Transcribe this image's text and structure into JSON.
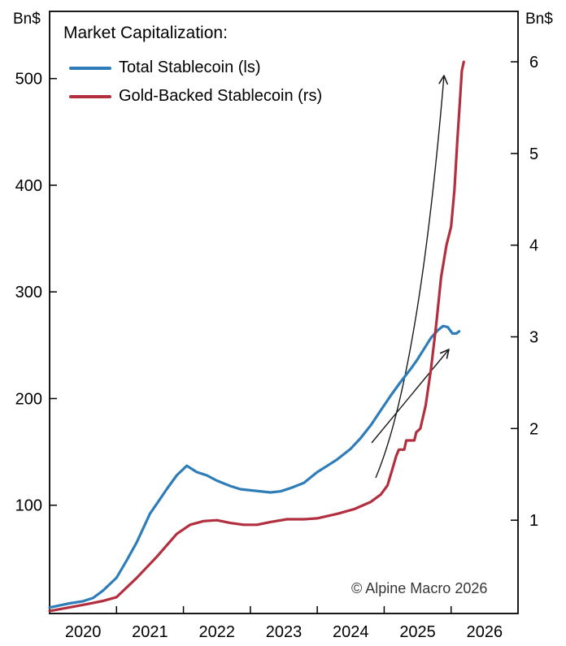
{
  "chart_data": {
    "type": "line",
    "title": "Market Capitalization:",
    "copyright": "© Alpine Macro 2026",
    "grid": false,
    "legend_position": "top-left",
    "legend": [
      {
        "label": "Total Stablecoin (ls)",
        "color": "#2e7db8",
        "axis": "left"
      },
      {
        "label": "Gold-Backed Stablecoin (rs)",
        "color": "#b22f3f",
        "axis": "right"
      }
    ],
    "x_axis": {
      "range": [
        2020,
        2027
      ],
      "tick_years": [
        2021,
        2022,
        2023,
        2024,
        2025,
        2026
      ],
      "year_labels": [
        2020,
        2021,
        2022,
        2023,
        2024,
        2025,
        2026
      ]
    },
    "left_axis": {
      "unit": "Bn$",
      "ticks": [
        100,
        200,
        300,
        400,
        500
      ],
      "ylim": [
        0,
        563
      ]
    },
    "right_axis": {
      "unit": "Bn$",
      "ticks": [
        1,
        2,
        3,
        4,
        5,
        6
      ],
      "ylim": [
        0,
        6.55
      ]
    },
    "series": [
      {
        "name": "Total Stablecoin (ls)",
        "axis": "left",
        "color": "#2e7db8",
        "points": [
          [
            2020.0,
            4
          ],
          [
            2020.15,
            6
          ],
          [
            2020.3,
            8
          ],
          [
            2020.5,
            10
          ],
          [
            2020.65,
            13
          ],
          [
            2020.8,
            20
          ],
          [
            2021.0,
            32
          ],
          [
            2021.15,
            48
          ],
          [
            2021.3,
            65
          ],
          [
            2021.5,
            92
          ],
          [
            2021.62,
            103
          ],
          [
            2021.75,
            115
          ],
          [
            2021.9,
            128
          ],
          [
            2022.05,
            137
          ],
          [
            2022.2,
            131
          ],
          [
            2022.35,
            128
          ],
          [
            2022.5,
            123
          ],
          [
            2022.7,
            118
          ],
          [
            2022.85,
            115
          ],
          [
            2023.0,
            114
          ],
          [
            2023.3,
            112
          ],
          [
            2023.45,
            113
          ],
          [
            2023.6,
            116
          ],
          [
            2023.8,
            121
          ],
          [
            2024.0,
            131
          ],
          [
            2024.15,
            137
          ],
          [
            2024.3,
            143
          ],
          [
            2024.5,
            153
          ],
          [
            2024.65,
            163
          ],
          [
            2024.8,
            175
          ],
          [
            2024.95,
            189
          ],
          [
            2025.1,
            203
          ],
          [
            2025.25,
            216
          ],
          [
            2025.4,
            228
          ],
          [
            2025.5,
            237
          ],
          [
            2025.6,
            247
          ],
          [
            2025.7,
            257
          ],
          [
            2025.8,
            264
          ],
          [
            2025.88,
            268
          ],
          [
            2025.95,
            267
          ],
          [
            2026.02,
            261
          ],
          [
            2026.08,
            261
          ],
          [
            2026.12,
            263
          ]
        ]
      },
      {
        "name": "Gold-Backed Stablecoin (rs)",
        "axis": "right",
        "color": "#b22f3f",
        "points": [
          [
            2020.0,
            0.01
          ],
          [
            2020.3,
            0.05
          ],
          [
            2020.6,
            0.09
          ],
          [
            2020.8,
            0.12
          ],
          [
            2021.0,
            0.16
          ],
          [
            2021.3,
            0.37
          ],
          [
            2021.6,
            0.6
          ],
          [
            2021.9,
            0.85
          ],
          [
            2022.1,
            0.95
          ],
          [
            2022.3,
            0.99
          ],
          [
            2022.5,
            1.0
          ],
          [
            2022.7,
            0.97
          ],
          [
            2022.9,
            0.95
          ],
          [
            2023.1,
            0.95
          ],
          [
            2023.3,
            0.98
          ],
          [
            2023.55,
            1.01
          ],
          [
            2023.8,
            1.01
          ],
          [
            2024.0,
            1.02
          ],
          [
            2024.3,
            1.07
          ],
          [
            2024.55,
            1.12
          ],
          [
            2024.8,
            1.2
          ],
          [
            2024.95,
            1.28
          ],
          [
            2025.05,
            1.38
          ],
          [
            2025.12,
            1.55
          ],
          [
            2025.18,
            1.7
          ],
          [
            2025.22,
            1.77
          ],
          [
            2025.3,
            1.77
          ],
          [
            2025.33,
            1.87
          ],
          [
            2025.45,
            1.87
          ],
          [
            2025.48,
            1.96
          ],
          [
            2025.54,
            2.0
          ],
          [
            2025.62,
            2.25
          ],
          [
            2025.7,
            2.65
          ],
          [
            2025.78,
            3.15
          ],
          [
            2025.85,
            3.65
          ],
          [
            2025.93,
            4.0
          ],
          [
            2026.0,
            4.2
          ],
          [
            2026.05,
            4.6
          ],
          [
            2026.09,
            5.1
          ],
          [
            2026.13,
            5.55
          ],
          [
            2026.16,
            5.9
          ],
          [
            2026.19,
            6.0
          ]
        ]
      }
    ],
    "annotations": [
      {
        "type": "arrow",
        "name": "trend-arrow-steep",
        "from": [
          462,
          588
        ],
        "curve": [
          515,
          462
        ],
        "to": [
          546,
          93
        ],
        "color": "#1a1a1a"
      },
      {
        "type": "arrow",
        "name": "trend-arrow-shallow",
        "from": [
          457,
          545
        ],
        "to": [
          552,
          430
        ],
        "color": "#1a1a1a"
      }
    ]
  }
}
